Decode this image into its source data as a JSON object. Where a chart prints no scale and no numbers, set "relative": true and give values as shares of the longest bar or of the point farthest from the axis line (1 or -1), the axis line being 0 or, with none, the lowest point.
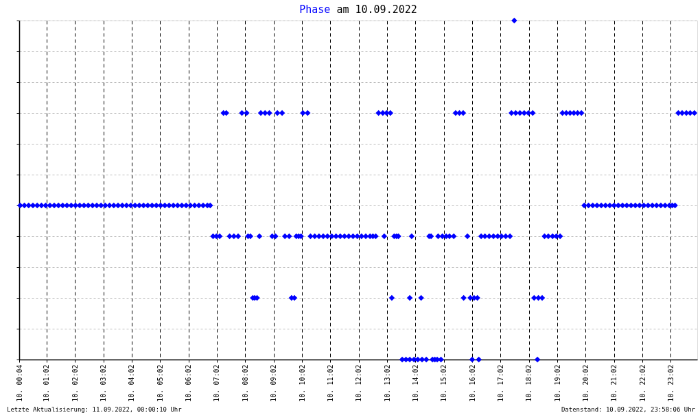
{
  "chart_data": {
    "type": "scatter",
    "title": "Phase am 10.09.2022",
    "relative": true,
    "marker": "diamond",
    "grid": true,
    "color": "#0000ff",
    "xlim": [
      "2022-09-10T00:04",
      "2022-09-10T23:58"
    ],
    "xticks": [
      {
        "value": "2022-09-10T00:04",
        "label": "10. 00:04"
      },
      {
        "value": "2022-09-10T01:02",
        "label": "10. 01:02"
      },
      {
        "value": "2022-09-10T02:02",
        "label": "10. 02:02"
      },
      {
        "value": "2022-09-10T03:02",
        "label": "10. 03:02"
      },
      {
        "value": "2022-09-10T04:02",
        "label": "10. 04:02"
      },
      {
        "value": "2022-09-10T05:02",
        "label": "10. 05:02"
      },
      {
        "value": "2022-09-10T06:02",
        "label": "10. 06:02"
      },
      {
        "value": "2022-09-10T07:02",
        "label": "10. 07:02"
      },
      {
        "value": "2022-09-10T08:02",
        "label": "10. 08:02"
      },
      {
        "value": "2022-09-10T09:02",
        "label": "10. 09:02"
      },
      {
        "value": "2022-09-10T10:02",
        "label": "10. 10:02"
      },
      {
        "value": "2022-09-10T11:02",
        "label": "10. 11:02"
      },
      {
        "value": "2022-09-10T12:02",
        "label": "10. 12:02"
      },
      {
        "value": "2022-09-10T13:02",
        "label": "10. 13:02"
      },
      {
        "value": "2022-09-10T14:02",
        "label": "10. 14:02"
      },
      {
        "value": "2022-09-10T15:02",
        "label": "10. 15:02"
      },
      {
        "value": "2022-09-10T16:02",
        "label": "10. 16:02"
      },
      {
        "value": "2022-09-10T17:02",
        "label": "10. 17:02"
      },
      {
        "value": "2022-09-10T18:02",
        "label": "10. 18:02"
      },
      {
        "value": "2022-09-10T19:02",
        "label": "10. 19:02"
      },
      {
        "value": "2022-09-10T20:02",
        "label": "10. 20:02"
      },
      {
        "value": "2022-09-10T21:02",
        "label": "10. 21:02"
      },
      {
        "value": "2022-09-10T22:02",
        "label": "10. 22:02"
      },
      {
        "value": "2022-09-10T23:02",
        "label": "10. 23:02"
      }
    ],
    "x": [
      "2022-09-10T00:06",
      "2022-09-10T00:15",
      "2022-09-10T00:24",
      "2022-09-10T00:33",
      "2022-09-10T00:42",
      "2022-09-10T00:51",
      "2022-09-10T01:00",
      "2022-09-10T01:09",
      "2022-09-10T01:18",
      "2022-09-10T01:27",
      "2022-09-10T01:36",
      "2022-09-10T01:45",
      "2022-09-10T01:54",
      "2022-09-10T02:03",
      "2022-09-10T02:12",
      "2022-09-10T02:21",
      "2022-09-10T02:30",
      "2022-09-10T02:39",
      "2022-09-10T02:48",
      "2022-09-10T02:57",
      "2022-09-10T03:06",
      "2022-09-10T03:15",
      "2022-09-10T03:24",
      "2022-09-10T03:33",
      "2022-09-10T03:42",
      "2022-09-10T03:51",
      "2022-09-10T04:00",
      "2022-09-10T04:09",
      "2022-09-10T04:18",
      "2022-09-10T04:27",
      "2022-09-10T04:36",
      "2022-09-10T04:45",
      "2022-09-10T04:54",
      "2022-09-10T05:03",
      "2022-09-10T05:12",
      "2022-09-10T05:21",
      "2022-09-10T05:30",
      "2022-09-10T05:39",
      "2022-09-10T05:48",
      "2022-09-10T05:57",
      "2022-09-10T06:06",
      "2022-09-10T06:15",
      "2022-09-10T06:24",
      "2022-09-10T06:33",
      "2022-09-10T06:42",
      "2022-09-10T06:48",
      "2022-09-10T19:59",
      "2022-09-10T20:08",
      "2022-09-10T20:17",
      "2022-09-10T20:26",
      "2022-09-10T20:35",
      "2022-09-10T20:44",
      "2022-09-10T20:53",
      "2022-09-10T21:02",
      "2022-09-10T21:11",
      "2022-09-10T21:20",
      "2022-09-10T21:29",
      "2022-09-10T21:38",
      "2022-09-10T21:47",
      "2022-09-10T21:56",
      "2022-09-10T22:05",
      "2022-09-10T22:14",
      "2022-09-10T22:23",
      "2022-09-10T22:32",
      "2022-09-10T22:41",
      "2022-09-10T22:50",
      "2022-09-10T22:59",
      "2022-09-10T23:05",
      "2022-09-10T23:11",
      "2022-09-10T06:54",
      "2022-09-10T07:01",
      "2022-09-10T07:08",
      "2022-09-10T07:29",
      "2022-09-10T07:38",
      "2022-09-10T07:47",
      "2022-09-10T08:08",
      "2022-09-10T08:13",
      "2022-09-10T08:32",
      "2022-09-10T08:59",
      "2022-09-10T09:06",
      "2022-09-10T09:26",
      "2022-09-10T09:35",
      "2022-09-10T09:50",
      "2022-09-10T09:55",
      "2022-09-10T10:00",
      "2022-09-10T10:20",
      "2022-09-10T10:29",
      "2022-09-10T10:38",
      "2022-09-10T10:47",
      "2022-09-10T10:56",
      "2022-09-10T11:05",
      "2022-09-10T11:14",
      "2022-09-10T11:23",
      "2022-09-10T11:32",
      "2022-09-10T11:41",
      "2022-09-10T11:50",
      "2022-09-10T11:59",
      "2022-09-10T12:08",
      "2022-09-10T12:17",
      "2022-09-10T12:26",
      "2022-09-10T12:32",
      "2022-09-10T12:38",
      "2022-09-10T12:56",
      "2022-09-10T13:17",
      "2022-09-10T13:22",
      "2022-09-10T13:26",
      "2022-09-10T13:54",
      "2022-09-10T14:31",
      "2022-09-10T14:35",
      "2022-09-10T14:50",
      "2022-09-10T14:59",
      "2022-09-10T15:07",
      "2022-09-10T15:14",
      "2022-09-10T15:23",
      "2022-09-10T15:52",
      "2022-09-10T16:21",
      "2022-09-10T16:29",
      "2022-09-10T16:38",
      "2022-09-10T16:47",
      "2022-09-10T16:56",
      "2022-09-10T17:04",
      "2022-09-10T17:13",
      "2022-09-10T17:22",
      "2022-09-10T18:35",
      "2022-09-10T18:43",
      "2022-09-10T18:52",
      "2022-09-10T19:00",
      "2022-09-10T19:08",
      "2022-09-10T07:16",
      "2022-09-10T07:22",
      "2022-09-10T07:55",
      "2022-09-10T08:05",
      "2022-09-10T08:35",
      "2022-09-10T08:44",
      "2022-09-10T08:53",
      "2022-09-10T09:10",
      "2022-09-10T09:20",
      "2022-09-10T10:04",
      "2022-09-10T10:14",
      "2022-09-10T12:44",
      "2022-09-10T12:53",
      "2022-09-10T13:01",
      "2022-09-10T13:09",
      "2022-09-10T15:27",
      "2022-09-10T15:35",
      "2022-09-10T15:43",
      "2022-09-10T17:25",
      "2022-09-10T17:34",
      "2022-09-10T17:43",
      "2022-09-10T17:52",
      "2022-09-10T18:01",
      "2022-09-10T18:10",
      "2022-09-10T19:13",
      "2022-09-10T19:21",
      "2022-09-10T19:29",
      "2022-09-10T19:37",
      "2022-09-10T19:45",
      "2022-09-10T19:53",
      "2022-09-10T23:18",
      "2022-09-10T23:26",
      "2022-09-10T23:35",
      "2022-09-10T23:43",
      "2022-09-10T23:52",
      "2022-09-10T08:18",
      "2022-09-10T08:22",
      "2022-09-10T08:27",
      "2022-09-10T09:40",
      "2022-09-10T09:46",
      "2022-09-10T13:12",
      "2022-09-10T13:50",
      "2022-09-10T14:14",
      "2022-09-10T15:44",
      "2022-09-10T15:58",
      "2022-09-10T16:06",
      "2022-09-10T16:13",
      "2022-09-10T18:13",
      "2022-09-10T18:22",
      "2022-09-10T18:30",
      "2022-09-10T13:34",
      "2022-09-10T13:42",
      "2022-09-10T13:50",
      "2022-09-10T13:59",
      "2022-09-10T14:07",
      "2022-09-10T14:16",
      "2022-09-10T14:25",
      "2022-09-10T14:38",
      "2022-09-10T14:43",
      "2022-09-10T14:48",
      "2022-09-10T14:56",
      "2022-09-10T16:02",
      "2022-09-10T16:16",
      "2022-09-10T18:20",
      "2022-09-10T17:31"
    ],
    "values": [
      0.4545,
      0.4545,
      0.4545,
      0.4545,
      0.4545,
      0.4545,
      0.4545,
      0.4545,
      0.4545,
      0.4545,
      0.4545,
      0.4545,
      0.4545,
      0.4545,
      0.4545,
      0.4545,
      0.4545,
      0.4545,
      0.4545,
      0.4545,
      0.4545,
      0.4545,
      0.4545,
      0.4545,
      0.4545,
      0.4545,
      0.4545,
      0.4545,
      0.4545,
      0.4545,
      0.4545,
      0.4545,
      0.4545,
      0.4545,
      0.4545,
      0.4545,
      0.4545,
      0.4545,
      0.4545,
      0.4545,
      0.4545,
      0.4545,
      0.4545,
      0.4545,
      0.4545,
      0.4545,
      0.4545,
      0.4545,
      0.4545,
      0.4545,
      0.4545,
      0.4545,
      0.4545,
      0.4545,
      0.4545,
      0.4545,
      0.4545,
      0.4545,
      0.4545,
      0.4545,
      0.4545,
      0.4545,
      0.4545,
      0.4545,
      0.4545,
      0.4545,
      0.4545,
      0.4545,
      0.4545,
      0.3636,
      0.3636,
      0.3636,
      0.3636,
      0.3636,
      0.3636,
      0.3636,
      0.3636,
      0.3636,
      0.3636,
      0.3636,
      0.3636,
      0.3636,
      0.3636,
      0.3636,
      0.3636,
      0.3636,
      0.3636,
      0.3636,
      0.3636,
      0.3636,
      0.3636,
      0.3636,
      0.3636,
      0.3636,
      0.3636,
      0.3636,
      0.3636,
      0.3636,
      0.3636,
      0.3636,
      0.3636,
      0.3636,
      0.3636,
      0.3636,
      0.3636,
      0.3636,
      0.3636,
      0.3636,
      0.3636,
      0.3636,
      0.3636,
      0.3636,
      0.3636,
      0.3636,
      0.3636,
      0.3636,
      0.3636,
      0.3636,
      0.3636,
      0.3636,
      0.3636,
      0.3636,
      0.3636,
      0.3636,
      0.3636,
      0.3636,
      0.3636,
      0.3636,
      0.7273,
      0.7273,
      0.7273,
      0.7273,
      0.7273,
      0.7273,
      0.7273,
      0.7273,
      0.7273,
      0.7273,
      0.7273,
      0.7273,
      0.7273,
      0.7273,
      0.7273,
      0.7273,
      0.7273,
      0.7273,
      0.7273,
      0.7273,
      0.7273,
      0.7273,
      0.7273,
      0.7273,
      0.7273,
      0.7273,
      0.7273,
      0.7273,
      0.7273,
      0.7273,
      0.7273,
      0.7273,
      0.7273,
      0.7273,
      0.7273,
      0.1818,
      0.1818,
      0.1818,
      0.1818,
      0.1818,
      0.1818,
      0.1818,
      0.1818,
      0.1818,
      0.1818,
      0.1818,
      0.1818,
      0.1818,
      0.1818,
      0.1818,
      0,
      0,
      0,
      0,
      0,
      0,
      0,
      0,
      0,
      0,
      0,
      0,
      0,
      0,
      1
    ],
    "annotations": [
      "Letzte Aktualisierung: 11.09.2022, 00:00:10 Uhr",
      "Datenstand: 10.09.2022, 23:58:06 Uhr"
    ]
  }
}
